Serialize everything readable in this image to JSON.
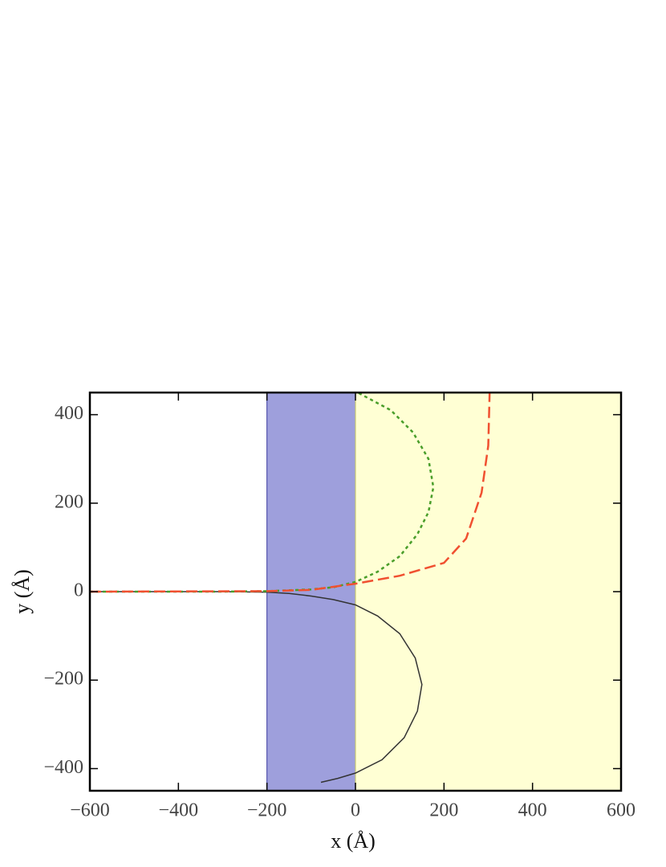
{
  "chart_data": {
    "type": "line",
    "xlabel": "x (Å)",
    "ylabel": "y (Å)",
    "xlim": [
      -600,
      600
    ],
    "ylim": [
      -450,
      450
    ],
    "xticks": [
      {
        "value": -600,
        "label": "−600"
      },
      {
        "value": -400,
        "label": "−400"
      },
      {
        "value": -200,
        "label": "−200"
      },
      0,
      200,
      400,
      600
    ],
    "yticks": [
      {
        "value": -400,
        "label": "−400"
      },
      {
        "value": -200,
        "label": "−200"
      },
      0,
      200,
      400
    ],
    "regions": [
      {
        "x": [
          -200,
          0
        ],
        "color": "#9e9fdc"
      },
      {
        "x": [
          0,
          600
        ],
        "color": "#ffffd4"
      }
    ],
    "series": [
      {
        "color": "#333333",
        "dash": "solid",
        "x": [
          -600,
          -300,
          -200,
          -150,
          -100,
          -50,
          0,
          50,
          100,
          135,
          150,
          140,
          110,
          60,
          0,
          -40,
          -78
        ],
        "values": [
          0,
          0,
          -1,
          -4,
          -10,
          -18,
          -30,
          -55,
          -95,
          -150,
          -210,
          -270,
          -330,
          -380,
          -410,
          -422,
          -431
        ]
      },
      {
        "color": "#4a9e2a",
        "dash": "dotted",
        "x": [
          -600,
          -300,
          -200,
          -100,
          -50,
          0,
          50,
          100,
          140,
          165,
          176,
          165,
          130,
          80,
          5
        ],
        "values": [
          0,
          0,
          1,
          5,
          10,
          22,
          45,
          80,
          130,
          180,
          236,
          300,
          360,
          410,
          450
        ]
      },
      {
        "color": "#f05030",
        "dash": "dashed",
        "x": [
          -600,
          -200,
          -100,
          0,
          100,
          200,
          250,
          285,
          300,
          303
        ],
        "values": [
          0,
          1,
          4,
          18,
          36,
          65,
          120,
          224,
          330,
          450
        ]
      }
    ]
  }
}
